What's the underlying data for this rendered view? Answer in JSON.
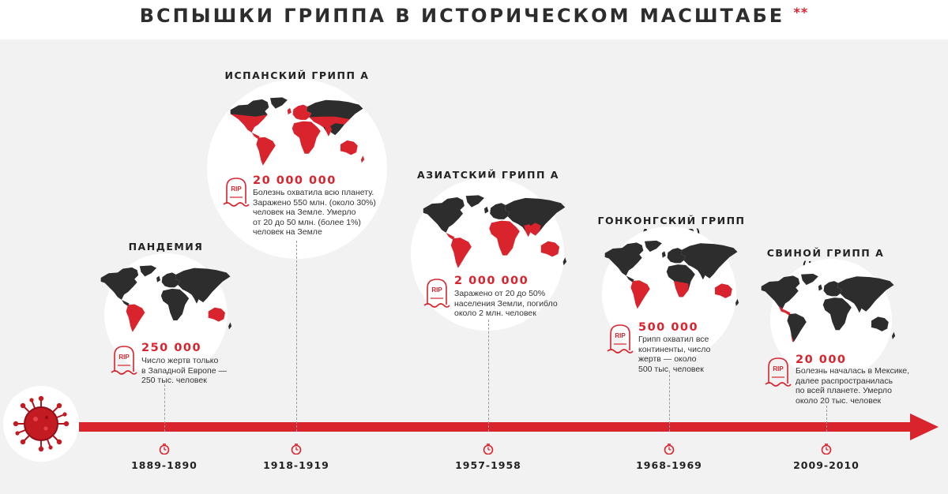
{
  "header": {
    "title": "ВСПЫШКИ ГРИППА В ИСТОРИЧЕСКОМ МАСШТАБЕ",
    "footnote_mark": "**"
  },
  "icons": {
    "virus": "coronavirus-icon",
    "tombstone": "rip-tombstone-icon",
    "clock": "timer-clock-icon",
    "arrow": "timeline-arrow"
  },
  "colors": {
    "accent": "#d9232d",
    "dark": "#2d2d2d",
    "background": "#f2f2f2"
  },
  "rip_label": "RIP",
  "events": [
    {
      "title": "ПАНДЕМИЯ",
      "deaths": "250 000",
      "description": "Число жертв только\nв Западной Европе —\n250 тыс. человек",
      "year": "1889-1890"
    },
    {
      "title": "ИСПАНСКИЙ ГРИПП\nА (H1N1)",
      "deaths": "20 000 000",
      "description": "Болезнь охватила всю планету.\nЗаражено 550 млн. (около 30%)\nчеловек на Земле. Умерло\nот 20 до 50 млн. (более 1%)\nчеловек на Земле",
      "year": "1918-1919"
    },
    {
      "title": "АЗИАТСКИЙ ГРИПП\nА (H2N2)",
      "deaths": "2 000 000",
      "description": "Заражено от 20 до 50%\nнаселения Земли, погибло\nоколо 2 млн. человек",
      "year": "1957-1958"
    },
    {
      "title": "ГОНКОНГСКИЙ ГРИПП\nА (H3N2)",
      "deaths": "500 000",
      "description": "Грипп охватил все\nконтиненты, число\nжертв — около\n500 тыс. человек",
      "year": "1968-1969"
    },
    {
      "title": "СВИНОЙ ГРИПП\nА (H1N1)",
      "deaths": "20 000",
      "description": "Болезнь началась в Мексике,\nдалее распространилась\nпо всей планете. Умерло\nоколо 20 тыс. человек",
      "year": "2009-2010"
    }
  ]
}
